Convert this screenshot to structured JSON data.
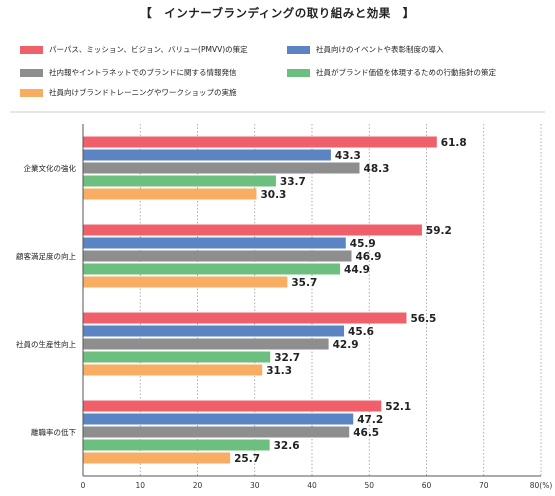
{
  "title": "【　インナーブランディングの取り組みと効果　】",
  "chart_data": {
    "type": "bar",
    "orientation": "horizontal",
    "categories": [
      "企業文化の強化",
      "顧客満足度の向上",
      "社員の生産性向上",
      "離職率の低下"
    ],
    "series": [
      {
        "name": "パーパス、ミッション、ビジョン、バリュー(PMVV)の策定",
        "color": "#f0606b",
        "values": [
          61.8,
          59.2,
          56.5,
          52.1
        ]
      },
      {
        "name": "社員向けのイベントや表彰制度の導入",
        "color": "#5b85c2",
        "values": [
          43.3,
          45.9,
          45.6,
          47.2
        ]
      },
      {
        "name": "社内報やイントラネットでのブランドに関する情報発信",
        "color": "#8e8e8e",
        "values": [
          48.3,
          46.9,
          42.9,
          46.5
        ]
      },
      {
        "name": "社員がブランド価値を体現するための行動指針の策定",
        "color": "#6cbf7f",
        "values": [
          33.7,
          44.9,
          32.7,
          32.6
        ]
      },
      {
        "name": "社員向けブランドトレーニングやワークショップの実施",
        "color": "#f9ad63",
        "values": [
          30.3,
          35.7,
          31.3,
          25.7
        ]
      }
    ],
    "xlim": [
      0,
      80
    ],
    "xticks": [
      "0",
      "10",
      "20",
      "30",
      "40",
      "50",
      "60",
      "70",
      "80(%)"
    ],
    "grid": true,
    "legend_position": "top"
  }
}
